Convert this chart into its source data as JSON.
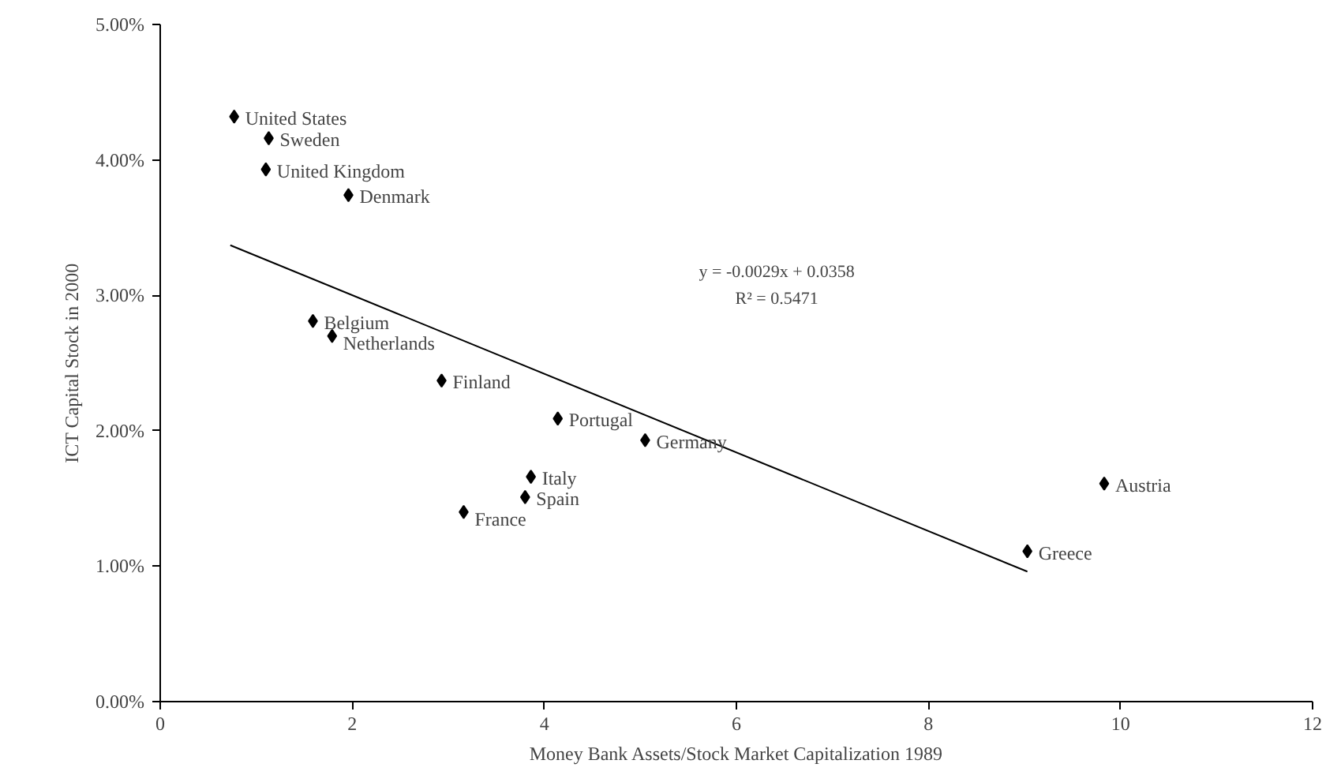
{
  "chart_data": {
    "type": "scatter",
    "xlabel": "Money Bank Assets/Stock Market Capitalization 1989",
    "ylabel": "ICT Capital Stock in 2000",
    "xlim": [
      0,
      12
    ],
    "xticks": [
      0,
      2,
      4,
      6,
      8,
      10,
      12
    ],
    "ylim": [
      0,
      0.05
    ],
    "yticks": [
      {
        "value": 0,
        "label": "0.00%"
      },
      {
        "value": 0.01,
        "label": "1.00%"
      },
      {
        "value": 0.02,
        "label": "2.00%"
      },
      {
        "value": 0.03,
        "label": "3.00%"
      },
      {
        "value": 0.04,
        "label": "4.00%"
      },
      {
        "value": 0.05,
        "label": "5.00%"
      }
    ],
    "grid": false,
    "marker": "diamond",
    "series": [
      {
        "color": "#000000",
        "x": [
          0.77,
          1.13,
          1.1,
          1.96,
          1.59,
          1.79,
          2.93,
          4.14,
          5.05,
          3.86,
          3.8,
          3.16,
          9.83,
          9.03
        ],
        "values": [
          0.0432,
          0.0416,
          0.0393,
          0.0374,
          0.0281,
          0.027,
          0.0237,
          0.0209,
          0.0193,
          0.0166,
          0.0151,
          0.014,
          0.0161,
          0.0111
        ]
      },
      {
        "type": "line",
        "color": "#000000",
        "line_style": "solid",
        "marker": "none",
        "x": [
          0.73,
          9.03
        ],
        "values": [
          0.0337,
          0.0096
        ]
      }
    ],
    "annotations": [
      {
        "text": "United States",
        "x": 0.77,
        "y": 0.0432
      },
      {
        "text": "Sweden",
        "x": 1.13,
        "y": 0.0416
      },
      {
        "text": "United Kingdom",
        "x": 1.1,
        "y": 0.0393
      },
      {
        "text": "Denmark",
        "x": 1.96,
        "y": 0.0374
      },
      {
        "text": "Belgium",
        "x": 1.59,
        "y": 0.0281
      },
      {
        "text": "Netherlands",
        "x": 1.79,
        "y": 0.027
      },
      {
        "text": "Finland",
        "x": 2.93,
        "y": 0.0237
      },
      {
        "text": "Portugal",
        "x": 4.14,
        "y": 0.0209
      },
      {
        "text": "Germany",
        "x": 5.05,
        "y": 0.0193
      },
      {
        "text": "Italy",
        "x": 3.86,
        "y": 0.0166
      },
      {
        "text": "Spain",
        "x": 3.8,
        "y": 0.0151
      },
      {
        "text": "France",
        "x": 3.16,
        "y": 0.014
      },
      {
        "text": "Austria",
        "x": 9.83,
        "y": 0.0161
      },
      {
        "text": "Greece",
        "x": 9.03,
        "y": 0.0111
      },
      "y = -0.0029x + 0.0358",
      "R² = 0.5471"
    ]
  }
}
